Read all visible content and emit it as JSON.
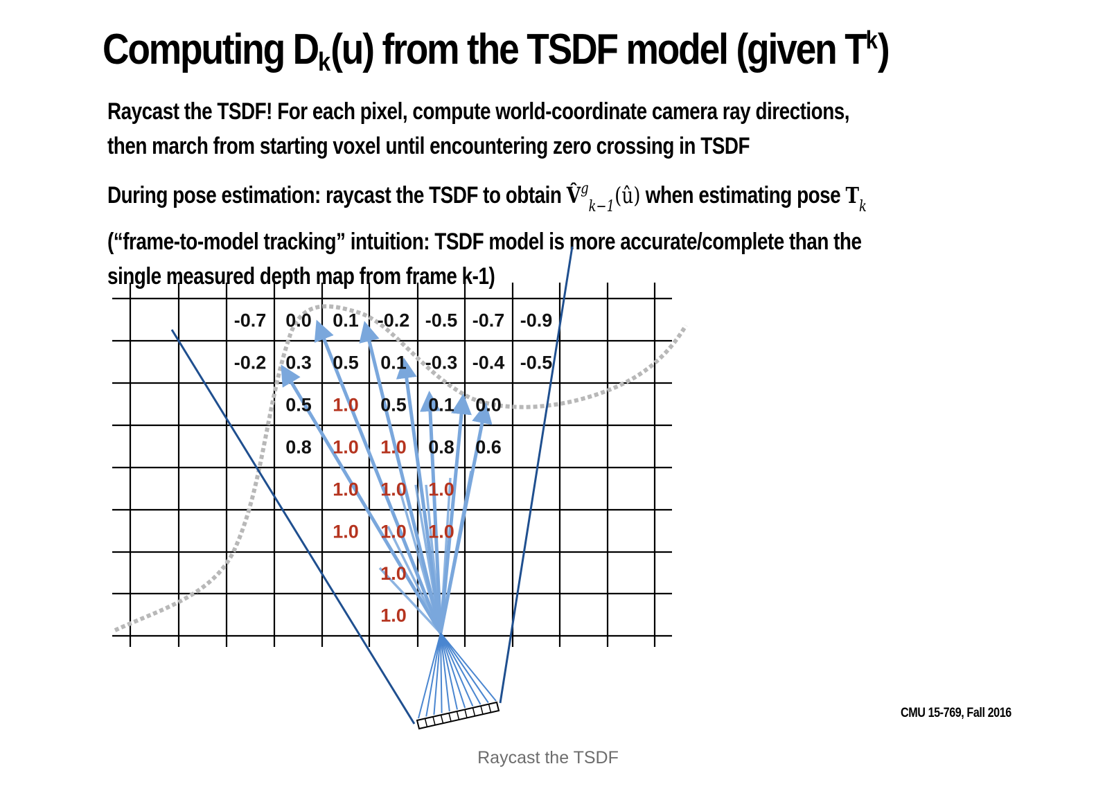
{
  "slide": {
    "title_prefix": "Computing D",
    "title_sub": "k",
    "title_mid": "(u) from the TSDF model (given T",
    "title_sup": "k",
    "title_suffix": ")",
    "bullet1_line1": "Raycast the TSDF! For each pixel, compute world-coordinate camera ray directions,",
    "bullet1_line2": "then march from starting voxel until encountering zero crossing in TSDF",
    "bullet2_line1_start": "During pose estimation: raycast the TSDF to obtain",
    "bullet2_line1_mid": "when estimating pose",
    "bullet2_line2": "(“frame-to-model tracking” intuition: TSDF model is more accurate/complete than the",
    "bullet2_line3": "single measured depth map from frame k-1)",
    "math_v": "V̂",
    "math_v_sup": "g",
    "math_v_sub": "k−1",
    "math_arg": "(û)",
    "math_t": "T",
    "math_t_sub": "k",
    "credit": "CMU 15-769, Fall 2016"
  },
  "grid": {
    "rows": [
      [
        "",
        "",
        "-0.7",
        "0.0",
        "0.1",
        "-0.2",
        "-0.5",
        "-0.7",
        "-0.9",
        "",
        ""
      ],
      [
        "",
        "",
        "-0.2",
        "0.3",
        "0.5",
        "0.1",
        "-0.3",
        "-0.4",
        "-0.5",
        "",
        ""
      ],
      [
        "",
        "",
        "",
        "0.5",
        "1.0",
        "0.5",
        "0.1",
        "0.0",
        "",
        "",
        ""
      ],
      [
        "",
        "",
        "",
        "0.8",
        "1.0",
        "1.0",
        "0.8",
        "0.6",
        "",
        "",
        ""
      ],
      [
        "",
        "",
        "",
        "",
        "1.0",
        "1.0",
        "1.0",
        "",
        "",
        "",
        ""
      ],
      [
        "",
        "",
        "",
        "",
        "1.0",
        "1.0",
        "1.0",
        "",
        "",
        "",
        ""
      ],
      [
        "",
        "",
        "",
        "",
        "",
        "1.0",
        "",
        "",
        "",
        "",
        ""
      ],
      [
        "",
        "",
        "",
        "",
        "",
        "1.0",
        "",
        "",
        "",
        "",
        ""
      ]
    ],
    "red_color": "#b5341f",
    "black_color": "#111111",
    "ray_color": "#7aa7dc",
    "frustum_color": "#1f4f8f",
    "surface_color": "#b8b8b8"
  },
  "caption": "Raycast the TSDF"
}
